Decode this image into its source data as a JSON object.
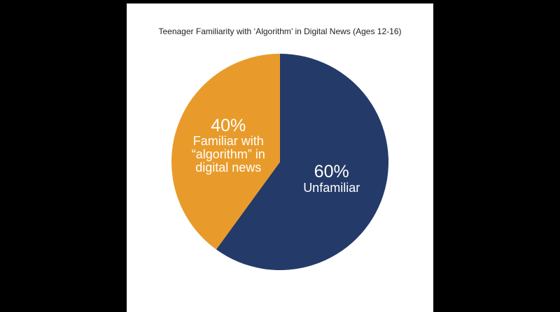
{
  "chart_data": {
    "type": "pie",
    "title": "Teenager Familiarity with ‘Algorithm’ in Digital News (Ages 12-16)",
    "categories": [
      "Unfamiliar",
      "Familiar with “algorithm” in digital news"
    ],
    "values": [
      60,
      40
    ],
    "value_labels": [
      "60%",
      "40%"
    ],
    "colors": [
      "#243a68",
      "#e89b2a"
    ]
  }
}
